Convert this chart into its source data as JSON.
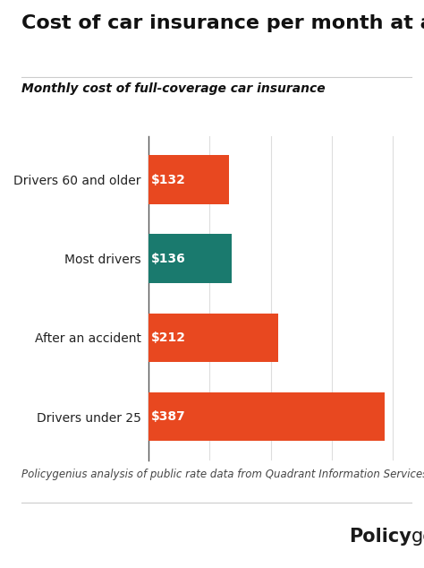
{
  "title": "Cost of car insurance per month at a glance",
  "subtitle": "Monthly cost of full-coverage car insurance",
  "categories": [
    "Drivers 60 and older",
    "Most drivers",
    "After an accident",
    "Drivers under 25"
  ],
  "values": [
    132,
    136,
    212,
    387
  ],
  "labels": [
    "$132",
    "$136",
    "$212",
    "$387"
  ],
  "bar_colors": [
    "#E84820",
    "#1A7A6E",
    "#E84820",
    "#E84820"
  ],
  "footnote": "Policygenius analysis of public rate data from Quadrant Information Services",
  "background_color": "#FFFFFF",
  "title_fontsize": 16,
  "subtitle_fontsize": 10,
  "label_fontsize": 10,
  "category_fontsize": 10,
  "footnote_fontsize": 8.5,
  "brand_fontsize": 15,
  "xlim": [
    0,
    430
  ]
}
